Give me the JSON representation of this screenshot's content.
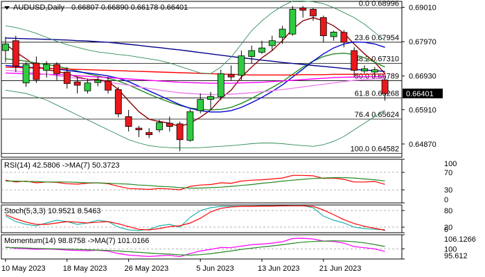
{
  "header": {
    "symbol": "AUDUSD,Daily",
    "ohlc": "0.66807 0.66890 0.66178 0.66401"
  },
  "chart_data": [
    {
      "type": "candlestick",
      "title": "AUDUSD,Daily",
      "x_labels": [
        "10 May 2023",
        "18 May 2023",
        "26 May 2023",
        "5 Jun 2023",
        "13 Jun 2023",
        "21 Jun 2023"
      ],
      "y_ticks": [
        0.6901,
        0.6797,
        0.6693,
        0.6591,
        0.6487
      ],
      "ylim": [
        0.6447,
        0.6919
      ],
      "current_price": 0.66401,
      "candles": [
        {
          "o": 0.677,
          "h": 0.6812,
          "l": 0.6735,
          "c": 0.679
        },
        {
          "o": 0.68,
          "h": 0.6815,
          "l": 0.6705,
          "c": 0.6723
        },
        {
          "o": 0.6672,
          "h": 0.6735,
          "l": 0.666,
          "c": 0.6728
        },
        {
          "o": 0.6732,
          "h": 0.6752,
          "l": 0.6672,
          "c": 0.6682
        },
        {
          "o": 0.671,
          "h": 0.6738,
          "l": 0.6688,
          "c": 0.6728
        },
        {
          "o": 0.6728,
          "h": 0.6735,
          "l": 0.668,
          "c": 0.67
        },
        {
          "o": 0.6705,
          "h": 0.672,
          "l": 0.6655,
          "c": 0.667
        },
        {
          "o": 0.6675,
          "h": 0.669,
          "l": 0.664,
          "c": 0.6665
        },
        {
          "o": 0.6648,
          "h": 0.6685,
          "l": 0.664,
          "c": 0.6672
        },
        {
          "o": 0.6673,
          "h": 0.669,
          "l": 0.6662,
          "c": 0.668
        },
        {
          "o": 0.6678,
          "h": 0.669,
          "l": 0.664,
          "c": 0.665
        },
        {
          "o": 0.6652,
          "h": 0.666,
          "l": 0.6568,
          "c": 0.6578
        },
        {
          "o": 0.657,
          "h": 0.659,
          "l": 0.6525,
          "c": 0.654
        },
        {
          "o": 0.6535,
          "h": 0.6542,
          "l": 0.6508,
          "c": 0.653
        },
        {
          "o": 0.6522,
          "h": 0.6535,
          "l": 0.6505,
          "c": 0.6515
        },
        {
          "o": 0.653,
          "h": 0.656,
          "l": 0.6522,
          "c": 0.6552
        },
        {
          "o": 0.655,
          "h": 0.657,
          "l": 0.6525,
          "c": 0.654
        },
        {
          "o": 0.6548,
          "h": 0.6555,
          "l": 0.6465,
          "c": 0.65
        },
        {
          "o": 0.6498,
          "h": 0.6592,
          "l": 0.6494,
          "c": 0.6585
        },
        {
          "o": 0.6588,
          "h": 0.664,
          "l": 0.658,
          "c": 0.6622
        },
        {
          "o": 0.6622,
          "h": 0.6645,
          "l": 0.659,
          "c": 0.6631
        },
        {
          "o": 0.663,
          "h": 0.6712,
          "l": 0.662,
          "c": 0.67
        },
        {
          "o": 0.6698,
          "h": 0.6725,
          "l": 0.668,
          "c": 0.669
        },
        {
          "o": 0.6695,
          "h": 0.677,
          "l": 0.668,
          "c": 0.6754
        },
        {
          "o": 0.6752,
          "h": 0.6785,
          "l": 0.673,
          "c": 0.677
        },
        {
          "o": 0.6765,
          "h": 0.68,
          "l": 0.676,
          "c": 0.6778
        },
        {
          "o": 0.6785,
          "h": 0.6815,
          "l": 0.677,
          "c": 0.68
        },
        {
          "o": 0.681,
          "h": 0.6845,
          "l": 0.679,
          "c": 0.6835
        },
        {
          "o": 0.682,
          "h": 0.6905,
          "l": 0.6815,
          "c": 0.6895
        },
        {
          "o": 0.6899,
          "h": 0.6905,
          "l": 0.687,
          "c": 0.6892
        },
        {
          "o": 0.6895,
          "h": 0.69,
          "l": 0.686,
          "c": 0.6875
        },
        {
          "o": 0.687,
          "h": 0.6876,
          "l": 0.6795,
          "c": 0.6815
        },
        {
          "o": 0.6812,
          "h": 0.683,
          "l": 0.68,
          "c": 0.6826
        },
        {
          "o": 0.6825,
          "h": 0.6832,
          "l": 0.678,
          "c": 0.6795
        },
        {
          "o": 0.677,
          "h": 0.678,
          "l": 0.669,
          "c": 0.671
        },
        {
          "o": 0.6708,
          "h": 0.6725,
          "l": 0.67,
          "c": 0.6715
        },
        {
          "o": 0.6705,
          "h": 0.672,
          "l": 0.669,
          "c": 0.6712
        },
        {
          "o": 0.6681,
          "h": 0.6689,
          "l": 0.6618,
          "c": 0.664
        }
      ],
      "fib_levels": [
        {
          "label": "0.0 0.68996",
          "value": 0.68996
        },
        {
          "label": "23.6 0.67954",
          "value": 0.67954
        },
        {
          "label": "38.2 0.67310",
          "value": 0.6731
        },
        {
          "label": "50.0 0.66789",
          "value": 0.66789
        },
        {
          "label": "61.8 0.66268",
          "value": 0.66268
        },
        {
          "label": "76.4 0.65624",
          "value": 0.65624
        },
        {
          "label": "100.0 0.64582",
          "value": 0.64582
        }
      ],
      "series": [
        {
          "name": "ma-fast",
          "color": "#8b0000",
          "values": [
            0.679,
            0.6765,
            0.6745,
            0.6722,
            0.6712,
            0.6707,
            0.67,
            0.669,
            0.6683,
            0.6682,
            0.6677,
            0.6652,
            0.6618,
            0.6585,
            0.6562,
            0.6555,
            0.655,
            0.654,
            0.655,
            0.6568,
            0.659,
            0.6625,
            0.665,
            0.669,
            0.672,
            0.6748,
            0.677,
            0.68,
            0.6835,
            0.686,
            0.687,
            0.686,
            0.6845,
            0.6822,
            0.679,
            0.676,
            0.6735,
            0.67
          ]
        },
        {
          "name": "ma-green",
          "color": "#228b22",
          "values": [
            0.6745,
            0.6742,
            0.6738,
            0.6732,
            0.6728,
            0.6723,
            0.6716,
            0.6708,
            0.67,
            0.6693,
            0.6686,
            0.6678,
            0.6666,
            0.6652,
            0.6638,
            0.6625,
            0.6614,
            0.6604,
            0.6596,
            0.6592,
            0.659,
            0.6592,
            0.6598,
            0.661,
            0.6625,
            0.6642,
            0.6658,
            0.6676,
            0.6698,
            0.672,
            0.6738,
            0.6752,
            0.676,
            0.6762,
            0.6758,
            0.6748,
            0.6735,
            0.672
          ]
        },
        {
          "name": "ma-blue",
          "color": "#0000cd",
          "values": [
            0.6725,
            0.6722,
            0.672,
            0.6718,
            0.6717,
            0.6714,
            0.671,
            0.6706,
            0.6702,
            0.6698,
            0.6693,
            0.6686,
            0.6676,
            0.6662,
            0.6648,
            0.6634,
            0.662,
            0.6606,
            0.6595,
            0.6588,
            0.6584,
            0.6584,
            0.6588,
            0.6598,
            0.6612,
            0.6628,
            0.6646,
            0.6666,
            0.669,
            0.6714,
            0.6738,
            0.676,
            0.6778,
            0.679,
            0.6796,
            0.6795,
            0.679,
            0.678
          ]
        },
        {
          "name": "ma-navy",
          "color": "#00008b",
          "values": [
            0.6808,
            0.6807,
            0.6806,
            0.6805,
            0.6804,
            0.6803,
            0.6802,
            0.68,
            0.6799,
            0.6797,
            0.6795,
            0.6792,
            0.6789,
            0.6786,
            0.6782,
            0.6779,
            0.6775,
            0.6772,
            0.6768,
            0.6764,
            0.676,
            0.6756,
            0.6752,
            0.6748,
            0.6745,
            0.6741,
            0.6738,
            0.6734,
            0.6731,
            0.6728,
            0.6725,
            0.6722,
            0.6719,
            0.6716,
            0.6713,
            0.6711,
            0.6709,
            0.6707
          ]
        },
        {
          "name": "ma-red",
          "color": "#ff0000",
          "values": [
            0.672,
            0.6719,
            0.6718,
            0.6717,
            0.6716,
            0.6715,
            0.6714,
            0.6713,
            0.6712,
            0.6711,
            0.671,
            0.6709,
            0.6708,
            0.6707,
            0.6706,
            0.6705,
            0.6704,
            0.6703,
            0.6702,
            0.6701,
            0.67,
            0.6699,
            0.6698,
            0.6697,
            0.6696,
            0.6696,
            0.6696,
            0.6696,
            0.6696,
            0.6697,
            0.6697,
            0.6697,
            0.6698,
            0.6698,
            0.6698,
            0.6698,
            0.6699,
            0.6699
          ]
        },
        {
          "name": "ma-magenta",
          "color": "#ff00ff",
          "values": [
            0.6702,
            0.6701,
            0.67,
            0.6699,
            0.6698,
            0.6697,
            0.6696,
            0.6694,
            0.6692,
            0.669,
            0.6688,
            0.6686,
            0.6684,
            0.6682,
            0.668,
            0.6678,
            0.6676,
            0.6674,
            0.6673,
            0.6672,
            0.6671,
            0.6671,
            0.6671,
            0.6672,
            0.6673,
            0.6674,
            0.6676,
            0.6678,
            0.668,
            0.6682,
            0.6684,
            0.6686,
            0.6688,
            0.6689,
            0.669,
            0.6691,
            0.6691,
            0.6691
          ]
        },
        {
          "name": "ma-pink",
          "color": "#ee82ee",
          "values": [
            0.671,
            0.6708,
            0.6705,
            0.6702,
            0.6698,
            0.6694,
            0.669,
            0.6686,
            0.6682,
            0.6678,
            0.6674,
            0.667,
            0.6665,
            0.666,
            0.6655,
            0.665,
            0.6646,
            0.6642,
            0.664,
            0.6638,
            0.6637,
            0.6637,
            0.6638,
            0.664,
            0.6642,
            0.6645,
            0.6648,
            0.6652,
            0.6656,
            0.666,
            0.6664,
            0.6668,
            0.6672,
            0.6676,
            0.668,
            0.6682,
            0.6684,
            0.6685
          ]
        },
        {
          "name": "band-upper",
          "color": "#2e8b57",
          "values": [
            0.6845,
            0.684,
            0.6832,
            0.6822,
            0.681,
            0.6798,
            0.6788,
            0.678,
            0.6772,
            0.6766,
            0.6762,
            0.6758,
            0.6755,
            0.675,
            0.6745,
            0.674,
            0.6732,
            0.6722,
            0.6712,
            0.6702,
            0.67,
            0.672,
            0.675,
            0.679,
            0.683,
            0.686,
            0.6885,
            0.6905,
            0.692,
            0.692,
            0.6918,
            0.6912,
            0.69,
            0.6885,
            0.687,
            0.685,
            0.6825,
            0.68
          ]
        },
        {
          "name": "band-lower",
          "color": "#2e8b57",
          "values": [
            0.665,
            0.6645,
            0.664,
            0.663,
            0.662,
            0.6605,
            0.659,
            0.6575,
            0.656,
            0.6545,
            0.653,
            0.6515,
            0.65,
            0.649,
            0.6482,
            0.6478,
            0.6476,
            0.6475,
            0.6475,
            0.6476,
            0.6478,
            0.648,
            0.6482,
            0.6485,
            0.6488,
            0.649,
            0.649,
            0.6488,
            0.6485,
            0.6482,
            0.648,
            0.6485,
            0.6495,
            0.651,
            0.653,
            0.655,
            0.657,
            0.659
          ]
        }
      ]
    },
    {
      "type": "line",
      "title": "RSI(14) 42.5806 ->MA(7) 50.3723",
      "ylim": [
        0,
        100
      ],
      "y_ticks": [
        100,
        70,
        30,
        0
      ],
      "levels": [
        70,
        30
      ],
      "series": [
        {
          "name": "RSI(14)",
          "color": "#ff0000",
          "values": [
            52,
            48,
            50,
            46,
            48,
            47,
            44,
            43,
            45,
            46,
            44,
            38,
            33,
            32,
            31,
            33,
            32,
            30,
            38,
            41,
            42,
            46,
            45,
            50,
            52,
            53,
            55,
            57,
            63,
            63,
            62,
            56,
            57,
            54,
            48,
            48,
            49,
            42.58
          ]
        },
        {
          "name": "MA(7)",
          "color": "#228b22",
          "values": [
            50,
            50,
            49,
            49,
            48,
            48,
            48,
            47,
            46,
            46,
            45,
            44,
            43,
            41,
            40,
            38,
            37,
            35,
            34,
            34,
            35,
            36,
            38,
            40,
            42,
            45,
            47,
            50,
            52,
            54,
            56,
            57,
            58,
            58,
            57,
            55,
            53,
            50.37
          ]
        }
      ]
    },
    {
      "type": "line",
      "title": "Stoch(5,3,3) 10.9521 8.5463",
      "ylim": [
        0,
        100
      ],
      "y_ticks": [
        80,
        20,
        0
      ],
      "levels": [
        80,
        20
      ],
      "series": [
        {
          "name": "%K",
          "color": "#20b2aa",
          "values": [
            60,
            40,
            30,
            25,
            35,
            45,
            40,
            30,
            35,
            45,
            40,
            20,
            10,
            8,
            12,
            25,
            30,
            20,
            55,
            80,
            90,
            95,
            95,
            95,
            96,
            97,
            97,
            97,
            98,
            98,
            90,
            60,
            45,
            35,
            20,
            15,
            12,
            10.95
          ]
        },
        {
          "name": "%D",
          "color": "#ff0000",
          "values": [
            65,
            50,
            38,
            30,
            30,
            35,
            40,
            38,
            35,
            38,
            40,
            32,
            22,
            12,
            10,
            15,
            22,
            25,
            35,
            52,
            75,
            88,
            93,
            95,
            95,
            96,
            96,
            97,
            97,
            97,
            95,
            82,
            65,
            47,
            33,
            23,
            16,
            8.55
          ]
        }
      ]
    },
    {
      "type": "line",
      "title": "Momentum(14) 98.8758 ->MA(7) 101.0166",
      "ylim": [
        95.612,
        106.1266
      ],
      "y_ticks": [
        106.1266,
        100,
        95.612
      ],
      "levels": [
        100
      ],
      "series": [
        {
          "name": "Momentum(14)",
          "color": "#ff00ff",
          "values": [
            100.8,
            100.2,
            100.1,
            99.8,
            99.9,
            99.8,
            99.5,
            99.3,
            99.2,
            99.4,
            99.0,
            98.0,
            97.3,
            97.0,
            96.7,
            97.0,
            97.2,
            96.6,
            98.0,
            99.1,
            99.8,
            100.6,
            100.5,
            101.2,
            101.8,
            102.1,
            102.5,
            103.1,
            104.5,
            104.6,
            104.3,
            103.4,
            103.2,
            102.5,
            101.0,
            100.5,
            100.0,
            98.88
          ]
        },
        {
          "name": "MA(7)",
          "color": "#228b22",
          "values": [
            100.6,
            100.5,
            100.4,
            100.2,
            100.1,
            100.0,
            99.9,
            99.8,
            99.6,
            99.5,
            99.3,
            99.1,
            98.8,
            98.5,
            98.2,
            97.9,
            97.7,
            97.4,
            97.3,
            97.5,
            97.9,
            98.5,
            99.1,
            99.8,
            100.3,
            100.8,
            101.3,
            101.8,
            102.4,
            102.9,
            103.2,
            103.4,
            103.5,
            103.4,
            103.1,
            102.6,
            101.9,
            101.02
          ]
        }
      ]
    }
  ]
}
